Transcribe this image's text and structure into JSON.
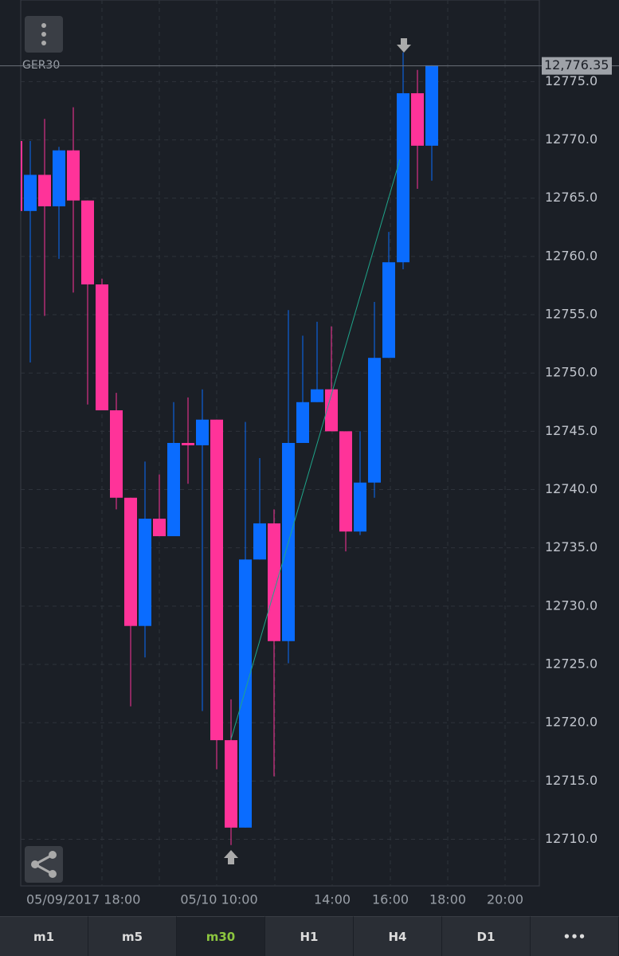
{
  "chart_data": {
    "type": "candlestick",
    "symbol": "GER30",
    "open": [
      12769.9,
      12763.9,
      12767.0,
      12764.3,
      12769.1,
      12764.8,
      12757.6,
      12746.8,
      12739.3,
      12728.3,
      12737.5,
      12736.0,
      12744.0,
      12743.8,
      12746.0,
      12718.5,
      12711.0,
      12734.0,
      12737.1,
      12727.0,
      12744.0,
      12747.5,
      12748.6,
      12745.0,
      12736.4,
      12740.6,
      12751.3,
      12759.5,
      12774.0,
      12769.5
    ],
    "high": [
      12769.9,
      12769.9,
      12771.8,
      12769.4,
      12772.8,
      12764.8,
      12758.1,
      12748.3,
      12739.3,
      12742.4,
      12741.3,
      12747.5,
      12747.9,
      12748.6,
      12746.0,
      12722.0,
      12745.8,
      12742.7,
      12738.3,
      12755.4,
      12753.2,
      12754.4,
      12754.0,
      12745.0,
      12745.0,
      12756.1,
      12762.1,
      12777.5,
      12776.0,
      12776.4
    ],
    "low": [
      12763.9,
      12750.9,
      12754.9,
      12759.8,
      12756.9,
      12747.3,
      12746.8,
      12738.3,
      12721.4,
      12725.6,
      12736.0,
      12736.0,
      12740.5,
      12721.0,
      12716.0,
      12709.5,
      12711.0,
      12734.0,
      12715.4,
      12725.1,
      12744.0,
      12747.5,
      12745.0,
      12734.7,
      12736.1,
      12739.3,
      12751.3,
      12758.9,
      12765.8,
      12766.5
    ],
    "close": [
      12763.9,
      12767.0,
      12764.3,
      12769.1,
      12764.8,
      12757.6,
      12746.8,
      12739.3,
      12728.3,
      12737.5,
      12736.0,
      12744.0,
      12743.8,
      12746.0,
      12718.5,
      12711.0,
      12734.0,
      12737.1,
      12727.0,
      12744.0,
      12747.5,
      12748.6,
      12745.0,
      12736.4,
      12740.6,
      12751.3,
      12759.5,
      12774.0,
      12769.5,
      12776.4
    ],
    "up_color": "#0a6cff",
    "down_color": "#ff3399",
    "ylim": [
      12706,
      12782
    ],
    "yticks": [
      {
        "value": 12710,
        "label": "12710.0"
      },
      {
        "value": 12715,
        "label": "12715.0"
      },
      {
        "value": 12720,
        "label": "12720.0"
      },
      {
        "value": 12725,
        "label": "12725.0"
      },
      {
        "value": 12730,
        "label": "12730.0"
      },
      {
        "value": 12735,
        "label": "12735.0"
      },
      {
        "value": 12740,
        "label": "12740.0"
      },
      {
        "value": 12745,
        "label": "12745.0"
      },
      {
        "value": 12750,
        "label": "12750.0"
      },
      {
        "value": 12755,
        "label": "12755.0"
      },
      {
        "value": 12760,
        "label": "12760.0"
      },
      {
        "value": 12765,
        "label": "12765.0"
      },
      {
        "value": 12770,
        "label": "12770.0"
      },
      {
        "value": 12775,
        "label": "12775.0"
      }
    ],
    "current_price": {
      "value": 12776.35,
      "label": "12,776.35"
    },
    "x_labels": [
      "05/09/2017 18:00",
      "05/10 10:00",
      "14:00",
      "16:00",
      "18:00",
      "20:00"
    ],
    "grid": true
  },
  "tabs": [
    "m1",
    "m5",
    "m30",
    "H1",
    "H4",
    "D1",
    "•••"
  ],
  "active_tab": "m30"
}
